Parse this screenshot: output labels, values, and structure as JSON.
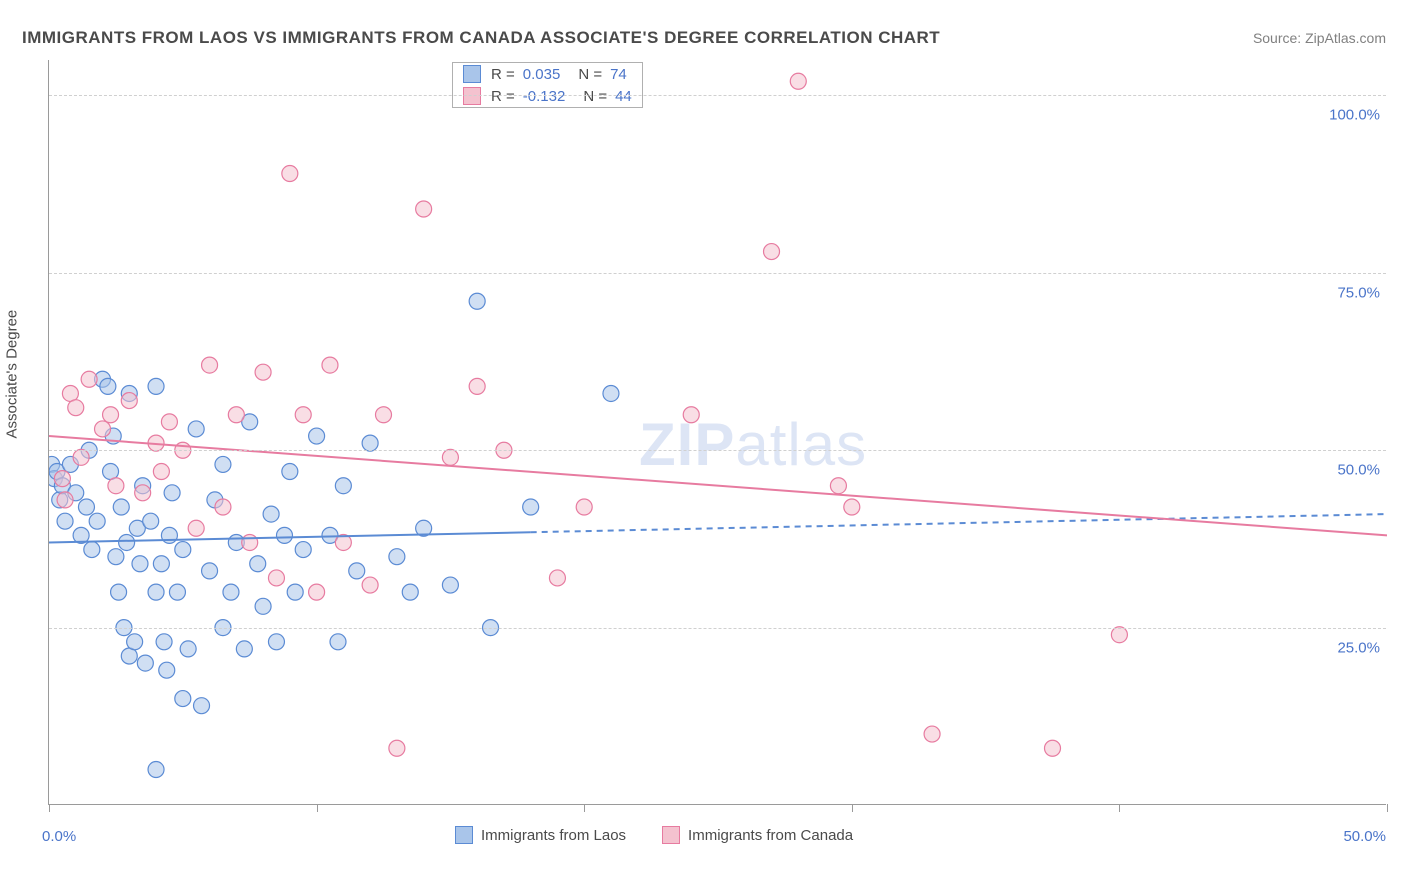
{
  "title": "IMMIGRANTS FROM LAOS VS IMMIGRANTS FROM CANADA ASSOCIATE'S DEGREE CORRELATION CHART",
  "source": "Source: ZipAtlas.com",
  "y_axis_title": "Associate's Degree",
  "watermark": {
    "bold": "ZIP",
    "light": "atlas"
  },
  "chart": {
    "type": "scatter",
    "background_color": "#ffffff",
    "grid_color": "#d0d0d0",
    "axis_color": "#9a9a9a",
    "text_color": "#4a4a4a",
    "accent_color": "#4a74c9",
    "xlim": [
      0,
      50
    ],
    "ylim": [
      0,
      105
    ],
    "y_ticks": [
      25,
      50,
      75,
      100
    ],
    "y_tick_labels": [
      "25.0%",
      "50.0%",
      "75.0%",
      "100.0%"
    ],
    "x_ticks": [
      0,
      10,
      20,
      30,
      40,
      50
    ],
    "x_label_min": "0.0%",
    "x_label_max": "50.0%",
    "marker_radius": 8,
    "marker_stroke_width": 1.2,
    "trend_line_width": 2,
    "series": [
      {
        "name": "Immigrants from Laos",
        "fill": "#a9c5ea",
        "stroke": "#5b8bd4",
        "fill_opacity": 0.55,
        "R": "0.035",
        "N": "74",
        "trend": {
          "x1": 0,
          "y1": 37,
          "x2": 50,
          "y2": 41,
          "solid_until_x": 18
        },
        "points": [
          [
            0.1,
            48
          ],
          [
            0.2,
            46
          ],
          [
            0.3,
            47
          ],
          [
            0.4,
            43
          ],
          [
            0.5,
            45
          ],
          [
            0.6,
            40
          ],
          [
            0.8,
            48
          ],
          [
            1.0,
            44
          ],
          [
            1.2,
            38
          ],
          [
            1.4,
            42
          ],
          [
            1.5,
            50
          ],
          [
            1.6,
            36
          ],
          [
            1.8,
            40
          ],
          [
            2.0,
            60
          ],
          [
            2.2,
            59
          ],
          [
            2.3,
            47
          ],
          [
            2.4,
            52
          ],
          [
            2.5,
            35
          ],
          [
            2.6,
            30
          ],
          [
            2.7,
            42
          ],
          [
            2.8,
            25
          ],
          [
            2.9,
            37
          ],
          [
            3.0,
            21
          ],
          [
            3.0,
            58
          ],
          [
            3.2,
            23
          ],
          [
            3.3,
            39
          ],
          [
            3.4,
            34
          ],
          [
            3.5,
            45
          ],
          [
            3.6,
            20
          ],
          [
            3.8,
            40
          ],
          [
            4.0,
            30
          ],
          [
            4.0,
            59
          ],
          [
            4.2,
            34
          ],
          [
            4.3,
            23
          ],
          [
            4.4,
            19
          ],
          [
            4.5,
            38
          ],
          [
            4.6,
            44
          ],
          [
            4.8,
            30
          ],
          [
            5.0,
            15
          ],
          [
            5.0,
            36
          ],
          [
            5.2,
            22
          ],
          [
            5.5,
            53
          ],
          [
            5.7,
            14
          ],
          [
            6.0,
            33
          ],
          [
            6.2,
            43
          ],
          [
            6.5,
            25
          ],
          [
            6.5,
            48
          ],
          [
            6.8,
            30
          ],
          [
            7.0,
            37
          ],
          [
            7.3,
            22
          ],
          [
            7.5,
            54
          ],
          [
            7.8,
            34
          ],
          [
            8.0,
            28
          ],
          [
            8.3,
            41
          ],
          [
            8.5,
            23
          ],
          [
            8.8,
            38
          ],
          [
            9.0,
            47
          ],
          [
            9.2,
            30
          ],
          [
            9.5,
            36
          ],
          [
            10.0,
            52
          ],
          [
            10.5,
            38
          ],
          [
            10.8,
            23
          ],
          [
            11.0,
            45
          ],
          [
            11.5,
            33
          ],
          [
            12.0,
            51
          ],
          [
            13.0,
            35
          ],
          [
            13.5,
            30
          ],
          [
            14.0,
            39
          ],
          [
            15.0,
            31
          ],
          [
            16.0,
            71
          ],
          [
            16.5,
            25
          ],
          [
            18.0,
            42
          ],
          [
            4.0,
            5
          ],
          [
            21.0,
            58
          ]
        ]
      },
      {
        "name": "Immigrants from Canada",
        "fill": "#f4c2cf",
        "stroke": "#e77ba0",
        "fill_opacity": 0.55,
        "R": "-0.132",
        "N": "44",
        "trend": {
          "x1": 0,
          "y1": 52,
          "x2": 50,
          "y2": 38,
          "solid_until_x": 50
        },
        "points": [
          [
            0.5,
            46
          ],
          [
            0.6,
            43
          ],
          [
            0.8,
            58
          ],
          [
            1.0,
            56
          ],
          [
            1.2,
            49
          ],
          [
            1.5,
            60
          ],
          [
            2.0,
            53
          ],
          [
            2.3,
            55
          ],
          [
            2.5,
            45
          ],
          [
            3.0,
            57
          ],
          [
            3.5,
            44
          ],
          [
            4.0,
            51
          ],
          [
            4.2,
            47
          ],
          [
            4.5,
            54
          ],
          [
            5.0,
            50
          ],
          [
            5.5,
            39
          ],
          [
            6.0,
            62
          ],
          [
            6.5,
            42
          ],
          [
            7.0,
            55
          ],
          [
            7.5,
            37
          ],
          [
            8.0,
            61
          ],
          [
            8.5,
            32
          ],
          [
            9.0,
            89
          ],
          [
            9.5,
            55
          ],
          [
            10.0,
            30
          ],
          [
            10.5,
            62
          ],
          [
            11.0,
            37
          ],
          [
            12.0,
            31
          ],
          [
            12.5,
            55
          ],
          [
            13.0,
            8
          ],
          [
            14.0,
            84
          ],
          [
            15.0,
            49
          ],
          [
            16.0,
            59
          ],
          [
            17.0,
            50
          ],
          [
            19.0,
            32
          ],
          [
            20.0,
            42
          ],
          [
            24.0,
            55
          ],
          [
            27.0,
            78
          ],
          [
            28.0,
            102
          ],
          [
            29.5,
            45
          ],
          [
            30.0,
            42
          ],
          [
            33.0,
            10
          ],
          [
            37.5,
            8
          ],
          [
            40.0,
            24
          ]
        ]
      }
    ]
  },
  "stat_legend": {
    "rows": [
      {
        "swatch_fill": "#a9c5ea",
        "swatch_stroke": "#5b8bd4",
        "R": "0.035",
        "N": "74"
      },
      {
        "swatch_fill": "#f4c2cf",
        "swatch_stroke": "#e77ba0",
        "R": "-0.132",
        "N": "44"
      }
    ]
  },
  "bottom_legend": [
    {
      "swatch_fill": "#a9c5ea",
      "swatch_stroke": "#5b8bd4",
      "label": "Immigrants from Laos"
    },
    {
      "swatch_fill": "#f4c2cf",
      "swatch_stroke": "#e77ba0",
      "label": "Immigrants from Canada"
    }
  ]
}
